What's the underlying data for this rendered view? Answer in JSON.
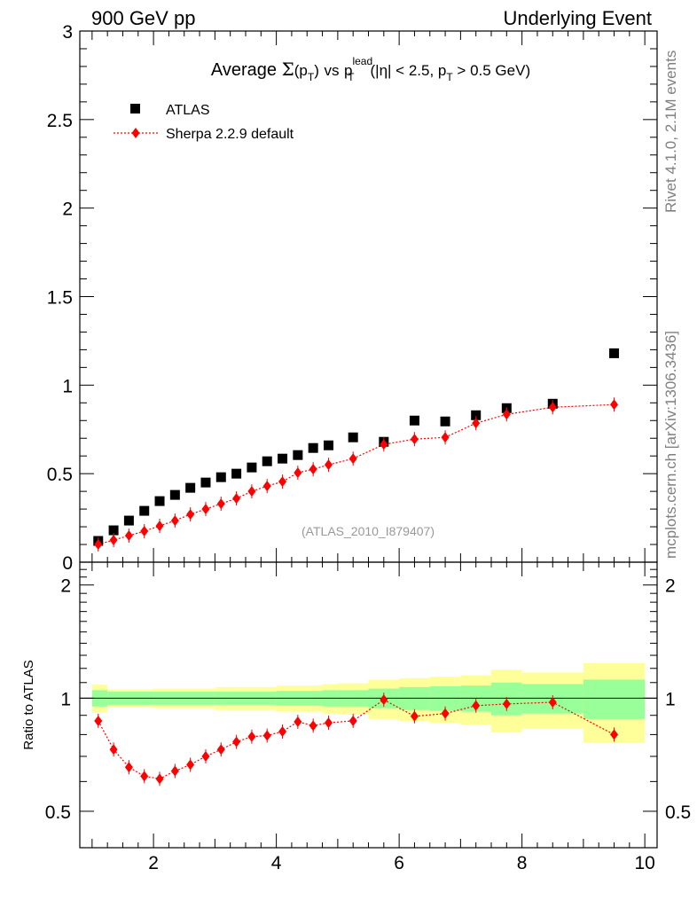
{
  "header": {
    "left": "900 GeV pp",
    "right": "Underlying Event"
  },
  "side_text": {
    "rivet": "Rivet 4.1.0,  2.1M events",
    "mcplots": "mcplots.cern.ch [arXiv:1306.3436]"
  },
  "watermark": "(ATLAS_2010_I879407)",
  "colors": {
    "data": "#000000",
    "mc": "#ff0000",
    "band_inner": "#99ff99",
    "band_outer": "#ffff99"
  },
  "chart_data": [
    {
      "type": "scatter",
      "title": {
        "prefix": "Average",
        "sigma": "Σ",
        "p": "p",
        "T": "T",
        "vs": "vs",
        "lead": "lead",
        "cuts": "(|η| < 2.5, p",
        "cuts_end": " > 0.5 GeV)"
      },
      "xlim": [
        0.8,
        10.2
      ],
      "ylim": [
        0,
        3
      ],
      "xticks": [
        "2",
        "4",
        "6",
        "8",
        "10"
      ],
      "yticks": [
        "0",
        "0.5",
        "1",
        "1.5",
        "2",
        "2.5",
        "3"
      ],
      "legend": {
        "position": "top-left",
        "data": "ATLAS",
        "mc": "Sherpa 2.2.9 default"
      },
      "series": [
        {
          "name": "ATLAS",
          "x": [
            1.1,
            1.35,
            1.6,
            1.85,
            2.1,
            2.35,
            2.6,
            2.85,
            3.1,
            3.35,
            3.6,
            3.85,
            4.1,
            4.35,
            4.6,
            4.85,
            5.25,
            5.75,
            6.25,
            6.75,
            7.25,
            7.75,
            8.5,
            9.5
          ],
          "y": [
            0.12,
            0.18,
            0.235,
            0.29,
            0.345,
            0.38,
            0.42,
            0.45,
            0.48,
            0.5,
            0.535,
            0.57,
            0.585,
            0.605,
            0.645,
            0.66,
            0.705,
            0.68,
            0.8,
            0.795,
            0.83,
            0.87,
            0.895,
            1.18
          ]
        },
        {
          "name": "Sherpa 2.2.9 default",
          "x": [
            1.1,
            1.35,
            1.6,
            1.85,
            2.1,
            2.35,
            2.6,
            2.85,
            3.1,
            3.35,
            3.6,
            3.85,
            4.1,
            4.35,
            4.6,
            4.85,
            5.25,
            5.75,
            6.25,
            6.75,
            7.25,
            7.75,
            8.5,
            9.5
          ],
          "y": [
            0.1,
            0.125,
            0.15,
            0.175,
            0.205,
            0.235,
            0.27,
            0.3,
            0.33,
            0.36,
            0.4,
            0.43,
            0.455,
            0.505,
            0.525,
            0.55,
            0.585,
            0.665,
            0.695,
            0.705,
            0.785,
            0.835,
            0.875,
            0.89
          ]
        }
      ]
    },
    {
      "type": "scatter",
      "ylabel": "Ratio to ATLAS",
      "xlim": [
        0.8,
        10.2
      ],
      "ylim": [
        0.4,
        2.3
      ],
      "xticks": [
        "2",
        "4",
        "6",
        "8",
        "10"
      ],
      "yticks": [
        "0.5",
        "1",
        "2"
      ],
      "bins": [
        {
          "x0": 1.0,
          "x1": 1.25,
          "inner": 0.05,
          "outer": 0.085
        },
        {
          "x0": 1.25,
          "x1": 2.0,
          "inner": 0.04,
          "outer": 0.055
        },
        {
          "x0": 2.0,
          "x1": 3.0,
          "inner": 0.04,
          "outer": 0.06
        },
        {
          "x0": 3.0,
          "x1": 4.0,
          "inner": 0.04,
          "outer": 0.07
        },
        {
          "x0": 4.0,
          "x1": 4.75,
          "inner": 0.045,
          "outer": 0.08
        },
        {
          "x0": 4.75,
          "x1": 5.0,
          "inner": 0.05,
          "outer": 0.09
        },
        {
          "x0": 5.0,
          "x1": 5.5,
          "inner": 0.05,
          "outer": 0.095
        },
        {
          "x0": 5.5,
          "x1": 6.0,
          "inner": 0.06,
          "outer": 0.12
        },
        {
          "x0": 6.0,
          "x1": 6.5,
          "inner": 0.07,
          "outer": 0.13
        },
        {
          "x0": 6.5,
          "x1": 7.0,
          "inner": 0.075,
          "outer": 0.14
        },
        {
          "x0": 7.0,
          "x1": 7.5,
          "inner": 0.08,
          "outer": 0.15
        },
        {
          "x0": 7.5,
          "x1": 8.0,
          "inner": 0.1,
          "outer": 0.19
        },
        {
          "x0": 8.0,
          "x1": 9.0,
          "inner": 0.09,
          "outer": 0.17
        },
        {
          "x0": 9.0,
          "x1": 10.0,
          "inner": 0.12,
          "outer": 0.24
        }
      ],
      "series": [
        {
          "name": "Sherpa 2.2.9 default",
          "x": [
            1.1,
            1.35,
            1.6,
            1.85,
            2.1,
            2.35,
            2.6,
            2.85,
            3.1,
            3.35,
            3.6,
            3.85,
            4.1,
            4.35,
            4.6,
            4.85,
            5.25,
            5.75,
            6.25,
            6.75,
            7.25,
            7.75,
            8.5,
            9.5
          ],
          "y": [
            0.87,
            0.73,
            0.655,
            0.62,
            0.61,
            0.64,
            0.665,
            0.7,
            0.73,
            0.765,
            0.79,
            0.795,
            0.815,
            0.865,
            0.845,
            0.86,
            0.87,
            0.99,
            0.895,
            0.91,
            0.955,
            0.965,
            0.975,
            0.8
          ]
        }
      ]
    }
  ]
}
